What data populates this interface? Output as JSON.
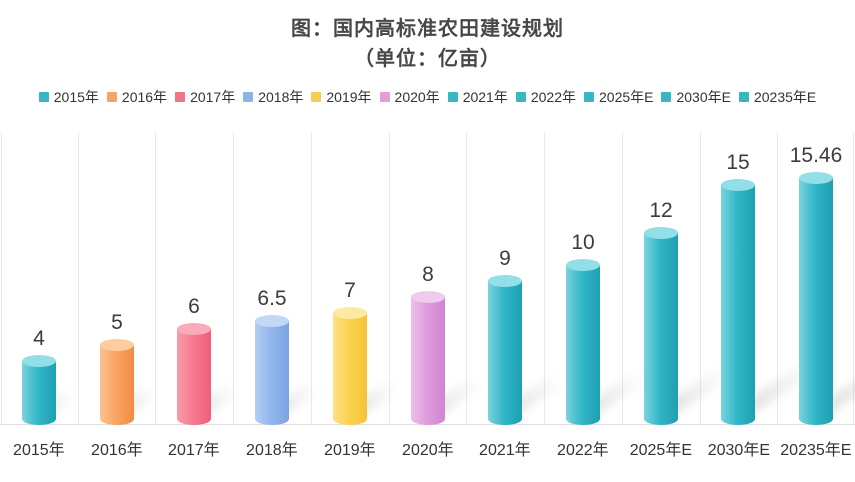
{
  "title": {
    "line1": "图：国内高标准农田建设规划",
    "line2": "（单位：亿亩）"
  },
  "legend": {
    "items": [
      {
        "label": "2015年",
        "color": "#3ab6c3"
      },
      {
        "label": "2016年",
        "color": "#f3a468"
      },
      {
        "label": "2017年",
        "color": "#ef7588"
      },
      {
        "label": "2018年",
        "color": "#90b3e6"
      },
      {
        "label": "2019年",
        "color": "#f6cd52"
      },
      {
        "label": "2020年",
        "color": "#e59cd7"
      },
      {
        "label": "2021年",
        "color": "#3ab6c3"
      },
      {
        "label": "2022年",
        "color": "#3ab6c3"
      },
      {
        "label": "2025年E",
        "color": "#3ab6c3"
      },
      {
        "label": "2030年E",
        "color": "#3ab6c3"
      },
      {
        "label": "20235年E",
        "color": "#3ab6c3"
      }
    ]
  },
  "chart_data": {
    "type": "bar",
    "title": "图：国内高标准农田建设规划",
    "subtitle": "（单位：亿亩）",
    "unit": "亿亩",
    "bar_style": "3d-cylinder",
    "legend_position": "top",
    "grid": "vertical category separators only",
    "ylim": [
      0,
      18
    ],
    "categories": [
      "2015年",
      "2016年",
      "2017年",
      "2018年",
      "2019年",
      "2020年",
      "2021年",
      "2022年",
      "2025年E",
      "2030年E",
      "20235年E"
    ],
    "values": [
      4,
      5,
      6,
      6.5,
      7,
      8,
      9,
      10,
      12,
      15,
      15.46
    ],
    "value_labels": [
      "4",
      "5",
      "6",
      "6.5",
      "7",
      "8",
      "9",
      "10",
      "12",
      "15",
      "15.46"
    ],
    "colors": [
      {
        "light": "#7ad3de",
        "mid": "#30b6c6",
        "dark": "#1e9fb2",
        "top": "#92dfe7"
      },
      {
        "light": "#fcc18e",
        "mid": "#f9a562",
        "dark": "#f08c43",
        "top": "#fbcda1"
      },
      {
        "light": "#f89cab",
        "mid": "#f4798e",
        "dark": "#ee5f78",
        "top": "#f8abb8"
      },
      {
        "light": "#b3cdf4",
        "mid": "#92b6ec",
        "dark": "#7ba3e2",
        "top": "#c3d8f7"
      },
      {
        "light": "#fde08a",
        "mid": "#fbd24e",
        "dark": "#f5c335",
        "top": "#fde9a1"
      },
      {
        "light": "#ecc0e9",
        "mid": "#df9cdc",
        "dark": "#d383cf",
        "top": "#f0cbee"
      },
      {
        "light": "#7ad3de",
        "mid": "#30b6c6",
        "dark": "#1e9fb2",
        "top": "#92dfe7"
      },
      {
        "light": "#7ad3de",
        "mid": "#30b6c6",
        "dark": "#1e9fb2",
        "top": "#92dfe7"
      },
      {
        "light": "#7ad3de",
        "mid": "#30b6c6",
        "dark": "#1e9fb2",
        "top": "#92dfe7"
      },
      {
        "light": "#7ad3de",
        "mid": "#30b6c6",
        "dark": "#1e9fb2",
        "top": "#92dfe7"
      },
      {
        "light": "#7ad3de",
        "mid": "#30b6c6",
        "dark": "#1e9fb2",
        "top": "#92dfe7"
      }
    ]
  }
}
